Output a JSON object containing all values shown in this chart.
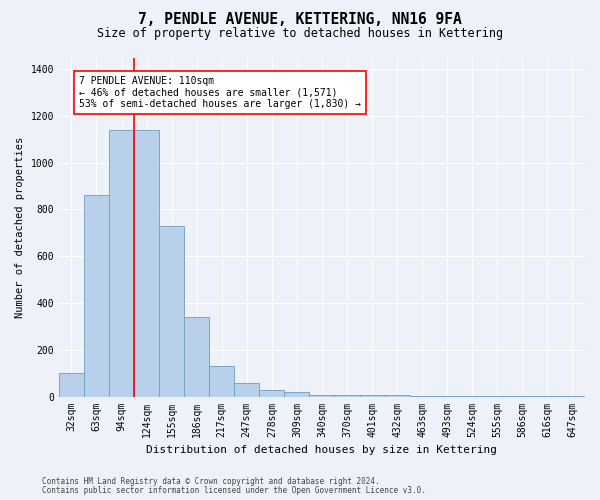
{
  "title": "7, PENDLE AVENUE, KETTERING, NN16 9FA",
  "subtitle": "Size of property relative to detached houses in Kettering",
  "xlabel": "Distribution of detached houses by size in Kettering",
  "ylabel": "Number of detached properties",
  "footnote1": "Contains HM Land Registry data © Crown copyright and database right 2024.",
  "footnote2": "Contains public sector information licensed under the Open Government Licence v3.0.",
  "categories": [
    "32sqm",
    "63sqm",
    "94sqm",
    "124sqm",
    "155sqm",
    "186sqm",
    "217sqm",
    "247sqm",
    "278sqm",
    "309sqm",
    "340sqm",
    "370sqm",
    "401sqm",
    "432sqm",
    "463sqm",
    "493sqm",
    "524sqm",
    "555sqm",
    "586sqm",
    "616sqm",
    "647sqm"
  ],
  "values": [
    100,
    860,
    1140,
    1140,
    730,
    340,
    130,
    60,
    30,
    20,
    5,
    5,
    5,
    5,
    3,
    3,
    2,
    2,
    2,
    2,
    2
  ],
  "bar_color": "#b8d0ea",
  "bar_edge_color": "#6a9fc0",
  "vline_x": 2.5,
  "vline_color": "red",
  "annotation_text": "7 PENDLE AVENUE: 110sqm\n← 46% of detached houses are smaller (1,571)\n53% of semi-detached houses are larger (1,830) →",
  "annotation_box_facecolor": "white",
  "annotation_box_edgecolor": "red",
  "ylim": [
    0,
    1450
  ],
  "yticks": [
    0,
    200,
    400,
    600,
    800,
    1000,
    1200,
    1400
  ],
  "title_fontsize": 10.5,
  "subtitle_fontsize": 8.5,
  "ylabel_fontsize": 7.5,
  "xlabel_fontsize": 8,
  "tick_fontsize": 7,
  "annotation_fontsize": 7,
  "footnote_fontsize": 5.5,
  "background_color": "#eef2f8",
  "plot_bg_color": "#eef2f8"
}
